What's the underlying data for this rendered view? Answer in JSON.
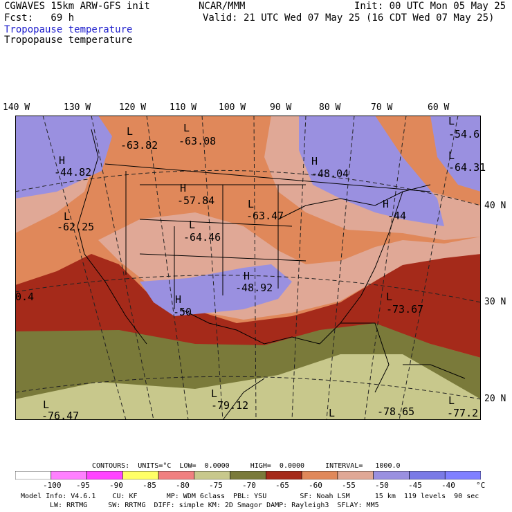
{
  "header": {
    "model": "CGWAVES 15km ARW-GFS init",
    "org": "NCAR/MMM",
    "init": "Init: 00 UTC Mon 05 May 25",
    "fcst": "Fcst:   69 h",
    "valid": "Valid: 21 UTC Wed 07 May 25 (16 CDT Wed 07 May 25)",
    "field_line1": "Tropopause temperature",
    "field_line2": "Tropopause temperature"
  },
  "map": {
    "longitudes": [
      "140 W",
      "130 W",
      "120 W",
      "110 W",
      "100 W",
      "90 W",
      "80 W",
      "70 W",
      "60 W"
    ],
    "latitudes": [
      "40 N",
      "30 N",
      "20 N"
    ],
    "highs_lows": [
      {
        "type": "L",
        "value": "-63.82"
      },
      {
        "type": "L",
        "value": "-63.08"
      },
      {
        "type": "H",
        "value": "-44.82"
      },
      {
        "type": "H",
        "value": "-57.84"
      },
      {
        "type": "L",
        "value": "-63.47"
      },
      {
        "type": "H",
        "value": "-48.04"
      },
      {
        "type": "L",
        "value": "-62.25"
      },
      {
        "type": "L",
        "value": "-64.46"
      },
      {
        "type": "H",
        "value": "-48.92"
      },
      {
        "type": "H",
        "value": "-50"
      },
      {
        "type": "L",
        "value": "-73.67"
      },
      {
        "type": "L",
        "value": "-79.12"
      },
      {
        "type": "L",
        "value": "-76.47"
      },
      {
        "type": "L",
        "value": "-78.65"
      },
      {
        "type": "L",
        "value": "-77.2"
      },
      {
        "type": "L",
        "value": "-54.6"
      },
      {
        "type": "L",
        "value": "-64.31"
      },
      {
        "type": "H",
        "value": "-44"
      },
      {
        "type": "",
        "value": "0.4"
      }
    ]
  },
  "contours_line": "CONTOURS:  UNITS=°C  LOW=  0.0000     HIGH=  0.0000     INTERVAL=   1000.0",
  "legend": {
    "ticks": [
      "-100",
      "-95",
      "-90",
      "-85",
      "-80",
      "-75",
      "-70",
      "-65",
      "-60",
      "-55",
      "-50",
      "-45",
      "-40",
      "°C"
    ],
    "colors": [
      "#ffffff",
      "#ff80ff",
      "#ff44ff",
      "#ffff66",
      "#f08080",
      "#c8c88c",
      "#7a7a3a",
      "#a52a1a",
      "#e0885a",
      "#e0a896",
      "#9a90e0",
      "#7a7ae6",
      "#8080ff"
    ]
  },
  "footer": {
    "line1": "Model Info: V4.6.1    CU: KF       MP: WDM 6class  PBL: YSU        SF: Noah LSM      15 km  119 levels  90 sec",
    "line2": "LW: RRTMG     SW: RRTMG  DIFF: simple KM: 2D Smagor DAMP: Rayleigh3  SFLAY: MM5"
  },
  "colors": {
    "purple": "#9a90e0",
    "light_blue": "#7a7ae6",
    "orange": "#e0885a",
    "pink": "#e0a896",
    "dark_red": "#a52a1a",
    "olive": "#7a7a3a",
    "khaki": "#c8c88c"
  }
}
